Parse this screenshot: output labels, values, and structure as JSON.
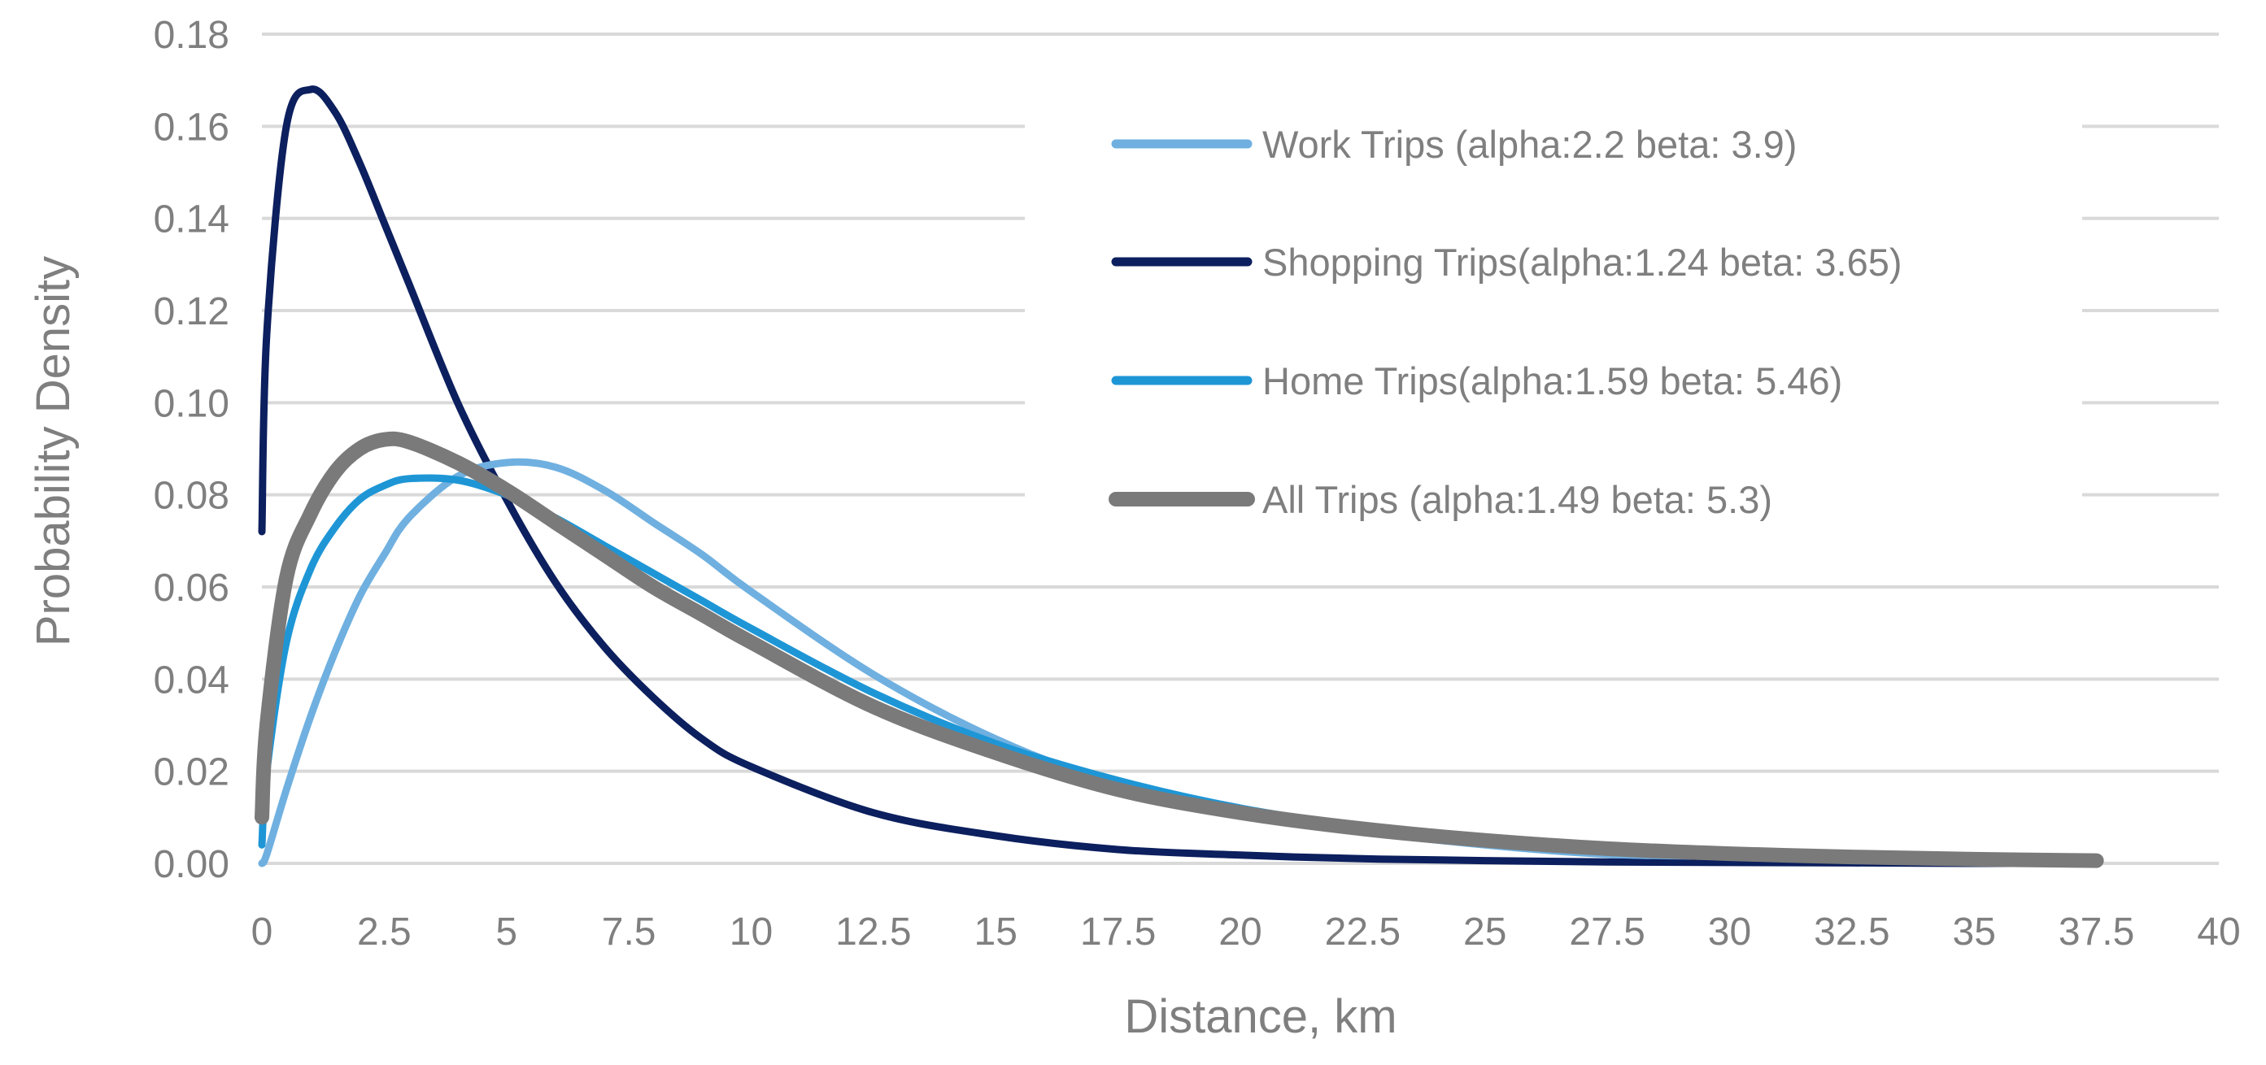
{
  "chart_data": {
    "type": "line",
    "title": "",
    "xlabel": "Distance, km",
    "ylabel": "Probability Density",
    "xlim": [
      0,
      40
    ],
    "ylim": [
      0,
      0.18
    ],
    "x_ticks": [
      "0",
      "2.5",
      "5",
      "7.5",
      "10",
      "12.5",
      "15",
      "17.5",
      "20",
      "22.5",
      "25",
      "27.5",
      "30",
      "32.5",
      "35",
      "37.5",
      "40"
    ],
    "x_tick_values": [
      0,
      2.5,
      5,
      7.5,
      10,
      12.5,
      15,
      17.5,
      20,
      22.5,
      25,
      27.5,
      30,
      32.5,
      35,
      37.5,
      40
    ],
    "y_ticks": [
      "0.00",
      "0.02",
      "0.04",
      "0.06",
      "0.08",
      "0.10",
      "0.12",
      "0.14",
      "0.16",
      "0.18"
    ],
    "y_tick_values": [
      0,
      0.02,
      0.04,
      0.06,
      0.08,
      0.1,
      0.12,
      0.14,
      0.16,
      0.18
    ],
    "grid": true,
    "legend_position": "top-right",
    "x": [
      0,
      0.1,
      0.5,
      1,
      1.5,
      2,
      2.5,
      3,
      4,
      5,
      6,
      7,
      8,
      9,
      10,
      12.5,
      15,
      17.5,
      20,
      22.5,
      25,
      27.5,
      30,
      32.5,
      35,
      37.5
    ],
    "series": [
      {
        "name": "Work Trips (alpha:2.2 beta: 3.9)",
        "color": "#6fb0e0",
        "stroke_width": 9,
        "values": [
          0,
          0.002,
          0.016,
          0.032,
          0.046,
          0.058,
          0.067,
          0.075,
          0.084,
          0.087,
          0.086,
          0.081,
          0.074,
          0.067,
          0.059,
          0.041,
          0.027,
          0.017,
          0.011,
          0.007,
          0.004,
          0.002,
          0.0015,
          0.001,
          0.0005,
          0.0003
        ]
      },
      {
        "name": "Shopping Trips(alpha:1.24 beta: 3.65)",
        "color": "#0c1f5e",
        "stroke_width": 9,
        "values": [
          0.072,
          0.115,
          0.16,
          0.168,
          0.163,
          0.152,
          0.139,
          0.126,
          0.1,
          0.079,
          0.061,
          0.047,
          0.036,
          0.027,
          0.021,
          0.011,
          0.006,
          0.003,
          0.0018,
          0.001,
          0.0006,
          0.0003,
          0.0002,
          0.0001,
          0,
          0
        ]
      },
      {
        "name": "Home Trips(alpha:1.59 beta: 5.46)",
        "color": "#1e96d6",
        "stroke_width": 9,
        "values": [
          0.004,
          0.02,
          0.048,
          0.064,
          0.073,
          0.079,
          0.082,
          0.0835,
          0.0832,
          0.08,
          0.075,
          0.069,
          0.063,
          0.057,
          0.051,
          0.037,
          0.026,
          0.018,
          0.012,
          0.008,
          0.0055,
          0.0035,
          0.0024,
          0.0015,
          0.001,
          0.0006
        ]
      },
      {
        "name": "All Trips (alpha:1.49 beta: 5.3)",
        "color": "#7a7a7a",
        "stroke_width": 18,
        "values": [
          0.01,
          0.03,
          0.062,
          0.076,
          0.085,
          0.09,
          0.092,
          0.0915,
          0.087,
          0.081,
          0.074,
          0.067,
          0.06,
          0.054,
          0.048,
          0.034,
          0.024,
          0.016,
          0.011,
          0.0075,
          0.005,
          0.0032,
          0.0021,
          0.0014,
          0.0009,
          0.0006
        ]
      }
    ]
  }
}
